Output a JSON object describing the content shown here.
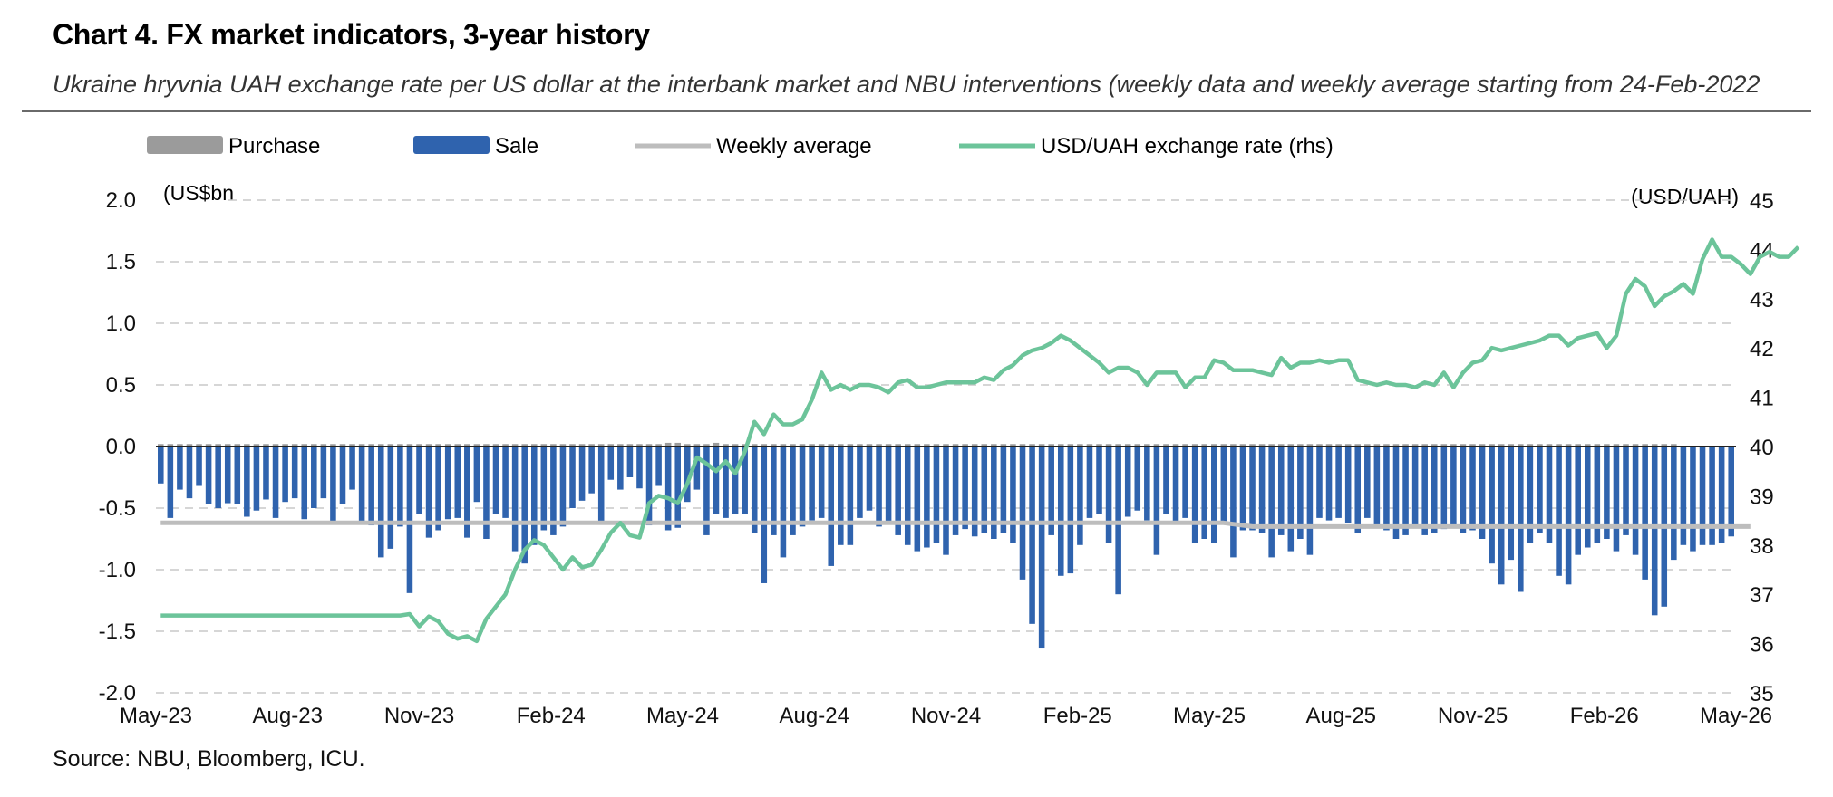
{
  "header": {
    "title": "Chart 4. FX market indicators, 3-year history",
    "subtitle": "Ukraine hryvnia UAH exchange rate per US dollar at the interbank market and NBU interventions (weekly data and weekly average starting from 24-Feb-2022"
  },
  "footer": {
    "source": "Source: NBU, Bloomberg, ICU."
  },
  "chart_data": {
    "type": "bar",
    "legend_position": "top",
    "left_axis_unit": "(US$bn",
    "right_axis_unit": "(USD/UAH)",
    "ylim": [
      -2.0,
      2.0
    ],
    "y_ticks": [
      "2.0",
      "1.5",
      "1.0",
      "0.5",
      "0.0",
      "-0.5",
      "-1.0",
      "-1.5",
      "-2.0"
    ],
    "y2lim": [
      35,
      45
    ],
    "y2_ticks": [
      "45",
      "44",
      "43",
      "42",
      "41",
      "40",
      "39",
      "38",
      "37",
      "36",
      "35"
    ],
    "grid": true,
    "x_labels": [
      "May-23",
      "Aug-23",
      "Nov-23",
      "Feb-24",
      "May-24",
      "Aug-24",
      "Nov-24",
      "Feb-25",
      "May-25",
      "Aug-25",
      "Nov-25",
      "Feb-26",
      "May-26"
    ],
    "colors": {
      "purchase": "#9b9b9b",
      "sale": "#2f63ae",
      "weekly_average": "#bdbdbd",
      "exchange_rate": "#6cc49a",
      "grid": "#c8c8c8"
    },
    "series": [
      {
        "name": "Purchase",
        "type": "bar",
        "values": [
          0.02,
          0.02,
          0.02,
          0.02,
          0.02,
          0.02,
          0.02,
          0.02,
          0.02,
          0.02,
          0.02,
          0.02,
          0.02,
          0.02,
          0.02,
          0.02,
          0.02,
          0.02,
          0.02,
          0.02,
          0.02,
          0.02,
          0.02,
          0.02,
          0.02,
          0.02,
          0.02,
          0.02,
          0.02,
          0.02,
          0.02,
          0.02,
          0.02,
          0.02,
          0.02,
          0.02,
          0.02,
          0.02,
          0.02,
          0.02,
          0.02,
          0.02,
          0.02,
          0.02,
          0.02,
          0.02,
          0.02,
          0.02,
          0.02,
          0.02,
          0.02,
          0.02,
          0.02,
          0.03,
          0.03,
          0.02,
          0.02,
          0.02,
          0.03,
          0.02,
          0.02,
          0.02,
          0.02,
          0.02,
          0.02,
          0.02,
          0.02,
          0.02,
          0.02,
          0.02,
          0.02,
          0.02,
          0.02,
          0.02,
          0.02,
          0.02,
          0.02,
          0.02,
          0.02,
          0.02,
          0.02,
          0.02,
          0.02,
          0.02,
          0.02,
          0.02,
          0.02,
          0.02,
          0.02,
          0.02,
          0.02,
          0.02,
          0.02,
          0.02,
          0.02,
          0.02,
          0.02,
          0.02,
          0.02,
          0.02,
          0.02,
          0.02,
          0.02,
          0.02,
          0.02,
          0.02,
          0.02,
          0.02,
          0.02,
          0.02,
          0.02,
          0.02,
          0.02,
          0.02,
          0.02,
          0.02,
          0.02,
          0.02,
          0.02,
          0.02,
          0.02,
          0.02,
          0.02,
          0.02,
          0.02,
          0.02,
          0.02,
          0.02,
          0.02,
          0.02,
          0.02,
          0.02,
          0.02,
          0.02,
          0.02,
          0.02,
          0.02,
          0.02,
          0.02,
          0.02,
          0.02,
          0.02,
          0.02,
          0.02,
          0.02,
          0.02,
          0.02,
          0.02,
          0.02,
          0.02,
          0.02,
          0.02,
          0.02,
          0.02,
          0.02,
          0.02,
          0.02,
          0.02,
          0.02
        ]
      },
      {
        "name": "Sale",
        "type": "bar",
        "values": [
          -0.3,
          -0.58,
          -0.35,
          -0.42,
          -0.32,
          -0.47,
          -0.5,
          -0.46,
          -0.47,
          -0.57,
          -0.52,
          -0.43,
          -0.58,
          -0.45,
          -0.42,
          -0.59,
          -0.5,
          -0.42,
          -0.62,
          -0.47,
          -0.35,
          -0.63,
          -0.64,
          -0.9,
          -0.83,
          -0.65,
          -1.19,
          -0.55,
          -0.74,
          -0.68,
          -0.59,
          -0.58,
          -0.74,
          -0.45,
          -0.75,
          -0.55,
          -0.58,
          -0.85,
          -0.95,
          -0.8,
          -0.68,
          -0.72,
          -0.65,
          -0.5,
          -0.44,
          -0.38,
          -0.62,
          -0.27,
          -0.35,
          -0.25,
          -0.34,
          -0.64,
          -0.32,
          -0.68,
          -0.66,
          -0.45,
          -0.35,
          -0.72,
          -0.55,
          -0.58,
          -0.55,
          -0.55,
          -0.7,
          -1.11,
          -0.72,
          -0.9,
          -0.72,
          -0.65,
          -0.6,
          -0.58,
          -0.97,
          -0.8,
          -0.8,
          -0.58,
          -0.52,
          -0.65,
          -0.62,
          -0.72,
          -0.8,
          -0.85,
          -0.82,
          -0.78,
          -0.88,
          -0.72,
          -0.67,
          -0.73,
          -0.7,
          -0.75,
          -0.7,
          -0.78,
          -1.08,
          -1.44,
          -1.64,
          -0.72,
          -1.05,
          -1.03,
          -0.8,
          -0.58,
          -0.55,
          -0.78,
          -1.2,
          -0.57,
          -0.52,
          -0.6,
          -0.88,
          -0.55,
          -0.63,
          -0.58,
          -0.78,
          -0.75,
          -0.78,
          -0.63,
          -0.9,
          -0.68,
          -0.68,
          -0.7,
          -0.9,
          -0.72,
          -0.85,
          -0.75,
          -0.88,
          -0.58,
          -0.6,
          -0.58,
          -0.62,
          -0.7,
          -0.58,
          -0.65,
          -0.68,
          -0.75,
          -0.72,
          -0.65,
          -0.72,
          -0.7,
          -0.67,
          -0.65,
          -0.7,
          -0.68,
          -0.75,
          -0.95,
          -1.12,
          -0.92,
          -1.18,
          -0.78,
          -0.7,
          -0.78,
          -1.05,
          -1.12,
          -0.88,
          -0.82,
          -0.78,
          -0.75,
          -0.85,
          -0.72,
          -0.88,
          -1.08,
          -1.37,
          -1.3,
          -0.92,
          -0.8,
          -0.85,
          -0.8,
          -0.8,
          -0.78,
          -0.73
        ]
      },
      {
        "name": "Weekly average",
        "type": "line",
        "values": [
          -0.62,
          -0.62,
          -0.62,
          -0.62,
          -0.62,
          -0.62,
          -0.62,
          -0.62,
          -0.62,
          -0.62,
          -0.62,
          -0.62,
          -0.62,
          -0.62,
          -0.62,
          -0.62,
          -0.62,
          -0.62,
          -0.62,
          -0.62,
          -0.62,
          -0.62,
          -0.62,
          -0.62,
          -0.62,
          -0.62,
          -0.62,
          -0.62,
          -0.62,
          -0.62,
          -0.62,
          -0.62,
          -0.62,
          -0.62,
          -0.62,
          -0.62,
          -0.62,
          -0.62,
          -0.62,
          -0.62,
          -0.62,
          -0.62,
          -0.62,
          -0.62,
          -0.62,
          -0.62,
          -0.62,
          -0.62,
          -0.62,
          -0.62,
          -0.62,
          -0.62,
          -0.62,
          -0.62,
          -0.62,
          -0.62,
          -0.62,
          -0.62,
          -0.62,
          -0.62,
          -0.62,
          -0.62,
          -0.62,
          -0.62,
          -0.62,
          -0.62,
          -0.62,
          -0.62,
          -0.62,
          -0.62,
          -0.62,
          -0.62,
          -0.62,
          -0.62,
          -0.62,
          -0.62,
          -0.62,
          -0.62,
          -0.62,
          -0.62,
          -0.62,
          -0.62,
          -0.62,
          -0.62,
          -0.62,
          -0.62,
          -0.62,
          -0.62,
          -0.62,
          -0.62,
          -0.62,
          -0.62,
          -0.62,
          -0.62,
          -0.62,
          -0.62,
          -0.62,
          -0.62,
          -0.62,
          -0.62,
          -0.62,
          -0.62,
          -0.62,
          -0.62,
          -0.62,
          -0.62,
          -0.62,
          -0.62,
          -0.62,
          -0.62,
          -0.62,
          -0.62,
          -0.63,
          -0.64,
          -0.65,
          -0.65,
          -0.65,
          -0.65,
          -0.65,
          -0.65,
          -0.65,
          -0.65,
          -0.65,
          -0.65,
          -0.65,
          -0.65,
          -0.65,
          -0.65,
          -0.65,
          -0.65,
          -0.65,
          -0.65,
          -0.65,
          -0.65,
          -0.65,
          -0.65,
          -0.65,
          -0.65,
          -0.65,
          -0.65,
          -0.65,
          -0.65,
          -0.65,
          -0.65,
          -0.65,
          -0.65,
          -0.65,
          -0.65,
          -0.65,
          -0.65,
          -0.65,
          -0.65,
          -0.65,
          -0.65,
          -0.65,
          -0.65,
          -0.65,
          -0.65,
          -0.65,
          -0.65,
          -0.65,
          -0.65,
          -0.65,
          -0.65,
          -0.65,
          -0.65,
          -0.65
        ]
      },
      {
        "name": "USD/UAH exchange rate (rhs)",
        "type": "line",
        "axis": "right",
        "values": [
          36.57,
          36.57,
          36.57,
          36.57,
          36.57,
          36.57,
          36.57,
          36.57,
          36.57,
          36.57,
          36.57,
          36.57,
          36.57,
          36.57,
          36.57,
          36.57,
          36.57,
          36.57,
          36.57,
          36.57,
          36.57,
          36.57,
          36.57,
          36.57,
          36.57,
          36.57,
          36.6,
          36.35,
          36.55,
          36.45,
          36.2,
          36.1,
          36.15,
          36.05,
          36.5,
          36.75,
          37.0,
          37.5,
          37.9,
          38.1,
          38.0,
          37.75,
          37.5,
          37.75,
          37.55,
          37.6,
          37.9,
          38.25,
          38.45,
          38.2,
          38.15,
          38.85,
          39.0,
          38.95,
          38.85,
          39.25,
          39.78,
          39.65,
          39.5,
          39.7,
          39.45,
          39.9,
          40.5,
          40.25,
          40.65,
          40.45,
          40.45,
          40.55,
          40.95,
          41.5,
          41.15,
          41.25,
          41.15,
          41.25,
          41.25,
          41.2,
          41.1,
          41.3,
          41.35,
          41.2,
          41.2,
          41.25,
          41.3,
          41.3,
          41.3,
          41.3,
          41.4,
          41.35,
          41.55,
          41.65,
          41.85,
          41.95,
          42.0,
          42.1,
          42.25,
          42.15,
          42.0,
          41.85,
          41.7,
          41.5,
          41.6,
          41.6,
          41.5,
          41.25,
          41.5,
          41.5,
          41.5,
          41.2,
          41.4,
          41.4,
          41.75,
          41.7,
          41.55,
          41.55,
          41.55,
          41.5,
          41.45,
          41.8,
          41.6,
          41.7,
          41.7,
          41.75,
          41.7,
          41.75,
          41.75,
          41.35,
          41.3,
          41.25,
          41.3,
          41.25,
          41.25,
          41.2,
          41.3,
          41.25,
          41.5,
          41.2,
          41.5,
          41.7,
          41.75,
          42.0,
          41.95,
          42.0,
          42.05,
          42.1,
          42.15,
          42.25,
          42.25,
          42.05,
          42.2,
          42.25,
          42.3,
          42.0,
          42.25,
          43.1,
          43.4,
          43.25,
          42.85,
          43.05,
          43.15,
          43.3,
          43.1,
          43.8,
          44.2,
          43.85,
          43.85,
          43.7,
          43.5,
          43.85,
          43.95,
          43.85,
          43.85,
          44.05
        ]
      }
    ]
  }
}
